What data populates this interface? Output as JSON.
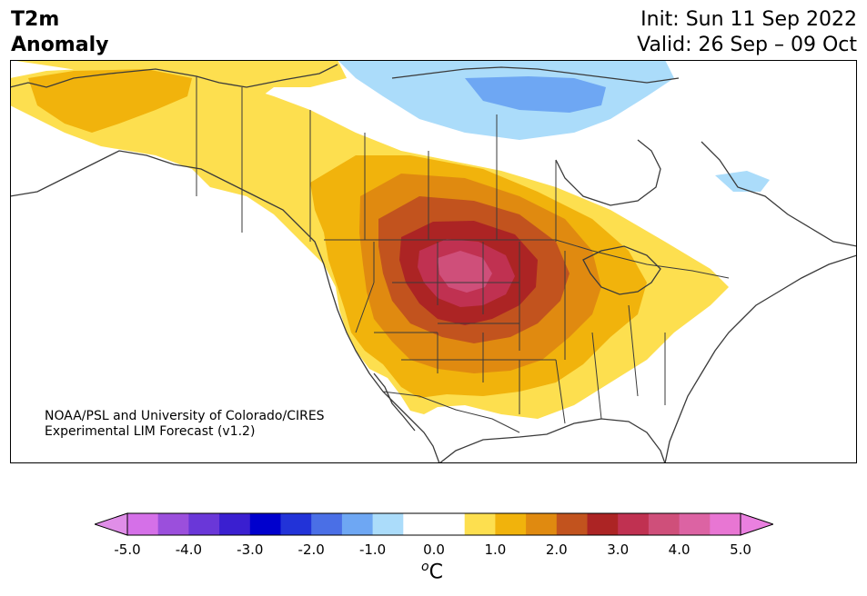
{
  "title": {
    "variable": "T2m",
    "subtitle": "Anomaly",
    "init": "Init: Sun 11 Sep 2022",
    "valid": "Valid: 26 Sep – 09 Oct"
  },
  "credit": {
    "line1": "NOAA/PSL and University of Colorado/CIRES",
    "line2": "Experimental LIM Forecast (v1.2)"
  },
  "colorbar": {
    "unit_base": "C",
    "unit_sup": "o",
    "ticks": [
      "-5.0",
      "-4.0",
      "-3.0",
      "-2.0",
      "-1.0",
      "0.0",
      "1.0",
      "2.0",
      "3.0",
      "4.0",
      "5.0"
    ],
    "colors": [
      "#d570e8",
      "#9b4fdc",
      "#6a37d8",
      "#3a1fd0",
      "#0000cd",
      "#2233d8",
      "#4a6fe6",
      "#6ea7f3",
      "#abdcfa",
      "#ffffff",
      "#ffffff",
      "#fddf4f",
      "#f1b30c",
      "#e08a10",
      "#c2531e",
      "#ac2424",
      "#c03151",
      "#cf4f7a",
      "#dc63a3",
      "#e876d3"
    ],
    "under_color": "#e08ee8",
    "over_color": "#ea80e0"
  },
  "legend_levels": {
    "warm_max": "#d14a78",
    "warm_core": "#ac2424"
  }
}
